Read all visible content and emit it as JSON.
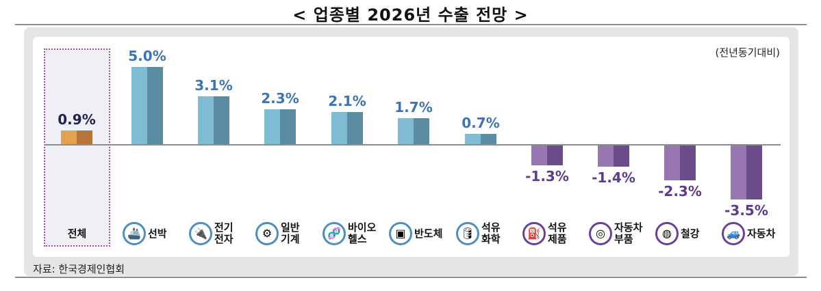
{
  "title": "< 업종별 2026년 수출 전망 >",
  "unit_note": "(전년동기대비)",
  "source": "자료: 한국경제인협회",
  "colors": {
    "positive_light": "#7fbcd3",
    "positive_dark": "#5a8ca4",
    "negative_light": "#9777b0",
    "negative_dark": "#6a4d8a",
    "total_light": "#e3a24f",
    "total_dark": "#b6753a",
    "positive_label": "#3e74b3",
    "negative_label": "#5c3a8e",
    "total_label": "#1f2350"
  },
  "categories": [
    {
      "name": "전체",
      "line1": "전체",
      "line2": "",
      "value": 0.9,
      "label": "0.9%",
      "icon": "",
      "kind": "total"
    },
    {
      "name": "선박",
      "line1": "선박",
      "line2": "",
      "value": 5.0,
      "label": "5.0%",
      "icon": "ship-icon",
      "kind": "pos"
    },
    {
      "name": "전기전자",
      "line1": "전기",
      "line2": "전자",
      "value": 3.1,
      "label": "3.1%",
      "icon": "plug-icon",
      "kind": "pos"
    },
    {
      "name": "일반기계",
      "line1": "일반",
      "line2": "기계",
      "value": 2.3,
      "label": "2.3%",
      "icon": "gears-icon",
      "kind": "pos"
    },
    {
      "name": "바이오헬스",
      "line1": "바이오",
      "line2": "헬스",
      "value": 2.1,
      "label": "2.1%",
      "icon": "dna-icon",
      "kind": "pos"
    },
    {
      "name": "반도체",
      "line1": "반도체",
      "line2": "",
      "value": 1.7,
      "label": "1.7%",
      "icon": "chip-icon",
      "kind": "pos"
    },
    {
      "name": "석유화학",
      "line1": "석유",
      "line2": "화학",
      "value": 0.7,
      "label": "0.7%",
      "icon": "tanker-car-icon",
      "kind": "pos"
    },
    {
      "name": "석유제품",
      "line1": "석유",
      "line2": "제품",
      "value": -1.3,
      "label": "-1.3%",
      "icon": "oil-can-icon",
      "kind": "neg"
    },
    {
      "name": "자동차부품",
      "line1": "자동차",
      "line2": "부품",
      "value": -1.4,
      "label": "-1.4%",
      "icon": "tires-icon",
      "kind": "neg"
    },
    {
      "name": "철강",
      "line1": "철강",
      "line2": "",
      "value": -2.3,
      "label": "-2.3%",
      "icon": "steel-coils-icon",
      "kind": "neg"
    },
    {
      "name": "자동차",
      "line1": "자동차",
      "line2": "",
      "value": -3.5,
      "label": "-3.5%",
      "icon": "car-icon",
      "kind": "neg"
    }
  ],
  "icon_glyphs": {
    "ship-icon": "🚢",
    "plug-icon": "🔌",
    "gears-icon": "⚙",
    "dna-icon": "🧬",
    "chip-icon": "▣",
    "tanker-car-icon": "🛢",
    "oil-can-icon": "⛽",
    "tires-icon": "◎",
    "steel-coils-icon": "◍",
    "car-icon": "🚙"
  },
  "chart_data": {
    "type": "bar",
    "title": "< 업종별 2026년 수출 전망 >",
    "subtitle": "(전년동기대비)",
    "categories": [
      "전체",
      "선박",
      "전기전자",
      "일반기계",
      "바이오헬스",
      "반도체",
      "석유화학",
      "석유제품",
      "자동차부품",
      "철강",
      "자동차"
    ],
    "values": [
      0.9,
      5.0,
      3.1,
      2.3,
      2.1,
      1.7,
      0.7,
      -1.3,
      -1.4,
      -2.3,
      -3.5
    ],
    "data_labels": [
      "0.9%",
      "5.0%",
      "3.1%",
      "2.3%",
      "2.1%",
      "1.7%",
      "0.7%",
      "-1.3%",
      "-1.4%",
      "-2.3%",
      "-3.5%"
    ],
    "xlabel": "",
    "ylabel": "",
    "unit": "%",
    "ylim": [
      -4,
      6
    ],
    "grid": false,
    "legend": null,
    "annotations": [
      "(전년동기대비)",
      "자료: 한국경제인협회"
    ]
  }
}
